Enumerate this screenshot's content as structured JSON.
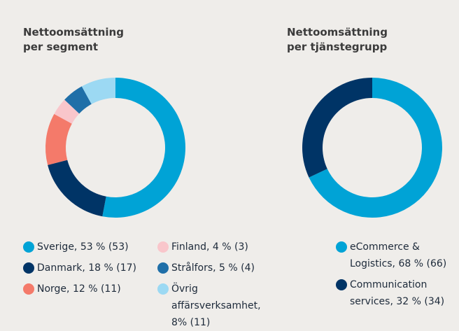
{
  "chart_data": [
    {
      "type": "pie",
      "title": "Nettoomsättning per segment",
      "categories": [
        "Sverige, 53 % (53)",
        "Danmark, 18 % (17)",
        "Norge, 12 % (11)",
        "Finland, 4 % (3)",
        "Strålfors, 5 % (4)",
        "Övrig affärsverksamhet, 8% (11)"
      ],
      "values": [
        53,
        18,
        12,
        4,
        5,
        8
      ],
      "colors": [
        "#00a3d6",
        "#003466",
        "#f47a6a",
        "#f9c6cb",
        "#1f6fa8",
        "#9cd9f3"
      ]
    },
    {
      "type": "pie",
      "title": "Nettoomsättning per tjänstegrupp",
      "categories": [
        "eCommerce & Logistics, 68 % (66)",
        "Communication services, 32 % (34)"
      ],
      "values": [
        68,
        32
      ],
      "colors": [
        "#00a3d6",
        "#003466"
      ]
    }
  ]
}
